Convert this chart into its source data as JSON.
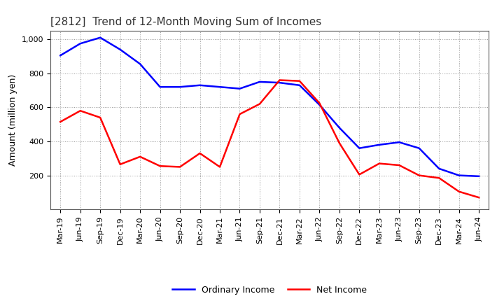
{
  "title": "[2812]  Trend of 12-Month Moving Sum of Incomes",
  "ylabel": "Amount (million yen)",
  "xlabels": [
    "Mar-19",
    "Jun-19",
    "Sep-19",
    "Dec-19",
    "Mar-20",
    "Jun-20",
    "Sep-20",
    "Dec-20",
    "Mar-21",
    "Jun-21",
    "Sep-21",
    "Dec-21",
    "Mar-22",
    "Jun-22",
    "Sep-22",
    "Dec-22",
    "Mar-23",
    "Jun-23",
    "Sep-23",
    "Dec-23",
    "Mar-24",
    "Jun-24"
  ],
  "ordinary_income": [
    905,
    975,
    1010,
    940,
    855,
    720,
    720,
    730,
    720,
    710,
    750,
    745,
    730,
    615,
    480,
    360,
    380,
    395,
    360,
    240,
    200,
    195
  ],
  "net_income": [
    515,
    580,
    540,
    265,
    310,
    255,
    250,
    330,
    250,
    560,
    620,
    760,
    755,
    625,
    390,
    205,
    270,
    260,
    200,
    185,
    105,
    70
  ],
  "ordinary_color": "#0000FF",
  "net_color": "#FF0000",
  "ylim_min": 0,
  "ylim_max": 1050,
  "yticks": [
    200,
    400,
    600,
    800,
    1000
  ],
  "ytick_labels": [
    "200",
    "400",
    "600",
    "800",
    "1,000"
  ],
  "background_color": "#FFFFFF",
  "grid_color": "#999999",
  "legend_ordinary": "Ordinary Income",
  "legend_net": "Net Income",
  "title_fontsize": 11,
  "axis_fontsize": 9,
  "tick_fontsize": 8,
  "line_width": 1.8
}
